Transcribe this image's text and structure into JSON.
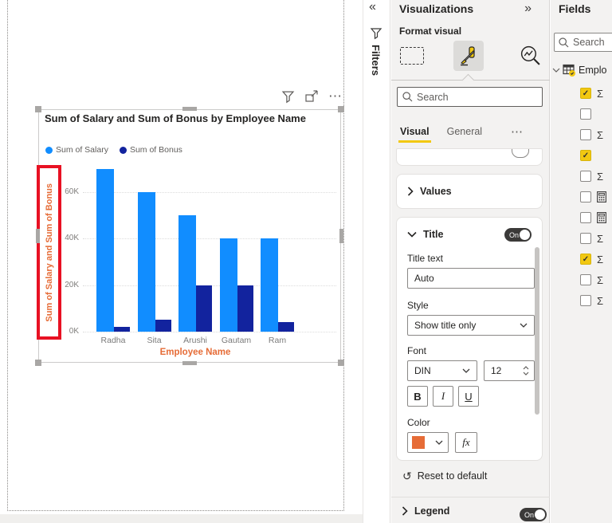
{
  "filters_panel": {
    "collapse_icon": "«",
    "label": "Filters"
  },
  "visual_header": {
    "more_icon": "⋯"
  },
  "chart_data": {
    "type": "bar",
    "title": "Sum of Salary and Sum of Bonus by Employee Name",
    "categories": [
      "Radha",
      "Sita",
      "Arushi",
      "Gautam",
      "Ram"
    ],
    "series": [
      {
        "name": "Sum of Salary",
        "color": "#118DFF",
        "values": [
          70000,
          60000,
          50000,
          40000,
          40000
        ]
      },
      {
        "name": "Sum of Bonus",
        "color": "#12239E",
        "values": [
          2000,
          5000,
          20000,
          20000,
          4000
        ]
      }
    ],
    "xlabel": "Employee Name",
    "ylabel": "Sum of Salary and Sum of Bonus",
    "ylim": [
      0,
      72000
    ],
    "y_ticks": [
      {
        "label": "60K",
        "value": 60000
      },
      {
        "label": "40K",
        "value": 40000
      },
      {
        "label": "20K",
        "value": 20000
      },
      {
        "label": "0K",
        "value": 0
      }
    ],
    "grid": "horizontal-dotted",
    "legend_position": "top-left",
    "annotation": {
      "type": "highlight-box",
      "target": "y-axis-title",
      "color": "#E81123"
    },
    "axis_title_color": "#E66C37"
  },
  "visualizations_panel": {
    "title": "Visualizations",
    "expand_icon": "»",
    "subtitle": "Format visual",
    "search_placeholder": "Search",
    "tabs": {
      "visual": "Visual",
      "general": "General",
      "more": "⋯"
    },
    "values_section_label": "Values",
    "title_section": {
      "label": "Title",
      "toggle": "On",
      "title_text_label": "Title text",
      "title_text_value": "Auto",
      "style_label": "Style",
      "style_value": "Show title only",
      "font_label": "Font",
      "font_name": "DIN",
      "font_size": "12",
      "bold_label": "B",
      "italic_label": "I",
      "underline_label": "U",
      "color_label": "Color",
      "color_swatch": "#E66C37",
      "fx_label": "fx"
    },
    "reset_label": "Reset to default",
    "reset_icon": "↺",
    "legend_section": {
      "label": "Legend",
      "toggle": "On"
    }
  },
  "fields_panel": {
    "title": "Fields",
    "search_placeholder": "Search",
    "table_name": "Emplo",
    "sigma_glyph": "Σ",
    "check_glyph": "✓",
    "rows": [
      {
        "checked": true,
        "icon": "sigma"
      },
      {
        "checked": false,
        "icon": "none"
      },
      {
        "checked": false,
        "icon": "sigma"
      },
      {
        "checked": true,
        "icon": "none"
      },
      {
        "checked": false,
        "icon": "sigma"
      },
      {
        "checked": false,
        "icon": "calculator"
      },
      {
        "checked": false,
        "icon": "calculator"
      },
      {
        "checked": false,
        "icon": "sigma"
      },
      {
        "checked": true,
        "icon": "sigma"
      },
      {
        "checked": false,
        "icon": "sigma"
      },
      {
        "checked": false,
        "icon": "sigma"
      }
    ]
  }
}
